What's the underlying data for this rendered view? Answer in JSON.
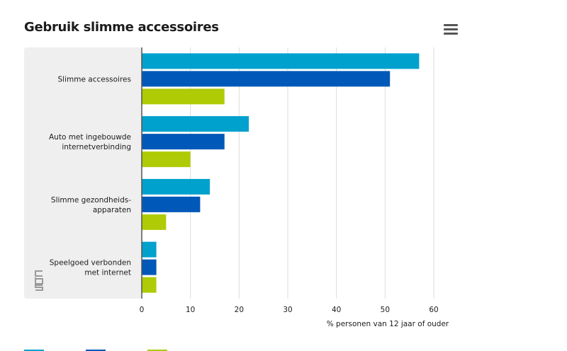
{
  "header": {
    "title": "Gebruik slimme accessoires",
    "menu_icon": "hamburger-menu-icon"
  },
  "logo": {
    "icon": "cbs-logo-icon",
    "text": "cbs"
  },
  "colors": {
    "series": [
      "#00a1cd",
      "#0058b8",
      "#afcb05"
    ],
    "panel": "#efefef",
    "grid": "#dddddd",
    "axis": "#555555"
  },
  "chart_data": {
    "type": "bar",
    "orientation": "horizontal",
    "title": "Gebruik slimme accessoires",
    "categories": [
      [
        "Slimme accessoires"
      ],
      [
        "Auto met ingebouwde",
        "internetverbinding"
      ],
      [
        "Slimme gezondheids-",
        "apparaten"
      ],
      [
        "Speelgoed verbonden",
        "met internet"
      ]
    ],
    "series": [
      {
        "name": "",
        "color": "#00a1cd",
        "values": [
          57,
          22,
          14,
          3
        ]
      },
      {
        "name": "",
        "color": "#0058b8",
        "values": [
          51,
          17,
          12,
          3
        ]
      },
      {
        "name": "",
        "color": "#afcb05",
        "values": [
          17,
          10,
          5,
          3
        ]
      }
    ],
    "xlabel": "% personen van 12 jaar of ouder",
    "xlim": [
      0,
      60
    ],
    "xticks": [
      0,
      10,
      20,
      30,
      40,
      50,
      60
    ],
    "grid": true,
    "legend_position": "bottom-left"
  }
}
